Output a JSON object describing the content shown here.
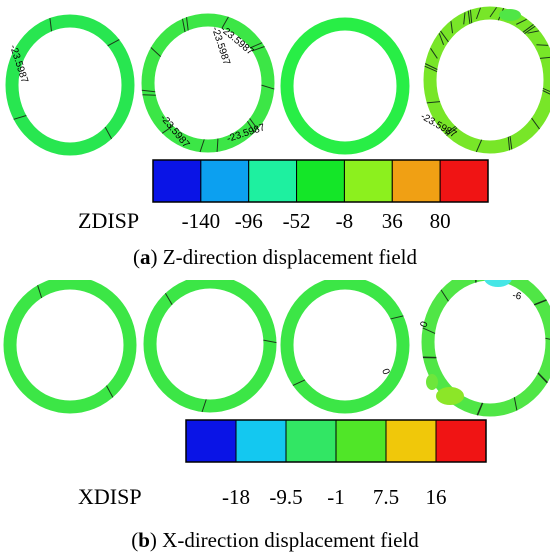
{
  "panels": [
    {
      "id": "a",
      "caption_letter": "a",
      "caption_text": "Z-direction displacement field",
      "colorbar_title": "ZDISP",
      "colorbar_ticks": [
        "-140",
        "-96",
        "-52",
        "-8",
        "36",
        "80"
      ],
      "colorbar_colors": [
        "#0a14e6",
        "#0ca0f0",
        "#1ef0a0",
        "#14e628",
        "#8cf01e",
        "#f0a014",
        "#f01414"
      ],
      "ring_colors": [
        "#28e650",
        "#3ce646",
        "#28ee46",
        "#78e628"
      ],
      "contour_labels": [
        "-23.5987",
        "-23.5987",
        "-23.5987",
        "-23.5987",
        "-23.5987",
        "-23.5987"
      ]
    },
    {
      "id": "b",
      "caption_letter": "b",
      "caption_text": "X-direction displacement field",
      "colorbar_title": "XDISP",
      "colorbar_ticks": [
        "-18",
        "-9.5",
        "-1",
        "7.5",
        "16"
      ],
      "colorbar_colors": [
        "#0a14e6",
        "#14c8f0",
        "#32e664",
        "#50e628",
        "#f0c80a",
        "#f01414"
      ],
      "ring_colors": [
        "#3ce646",
        "#3ce646",
        "#3ce646",
        "#50e646"
      ],
      "contour_labels": [
        "0",
        "0",
        "-6"
      ]
    }
  ]
}
